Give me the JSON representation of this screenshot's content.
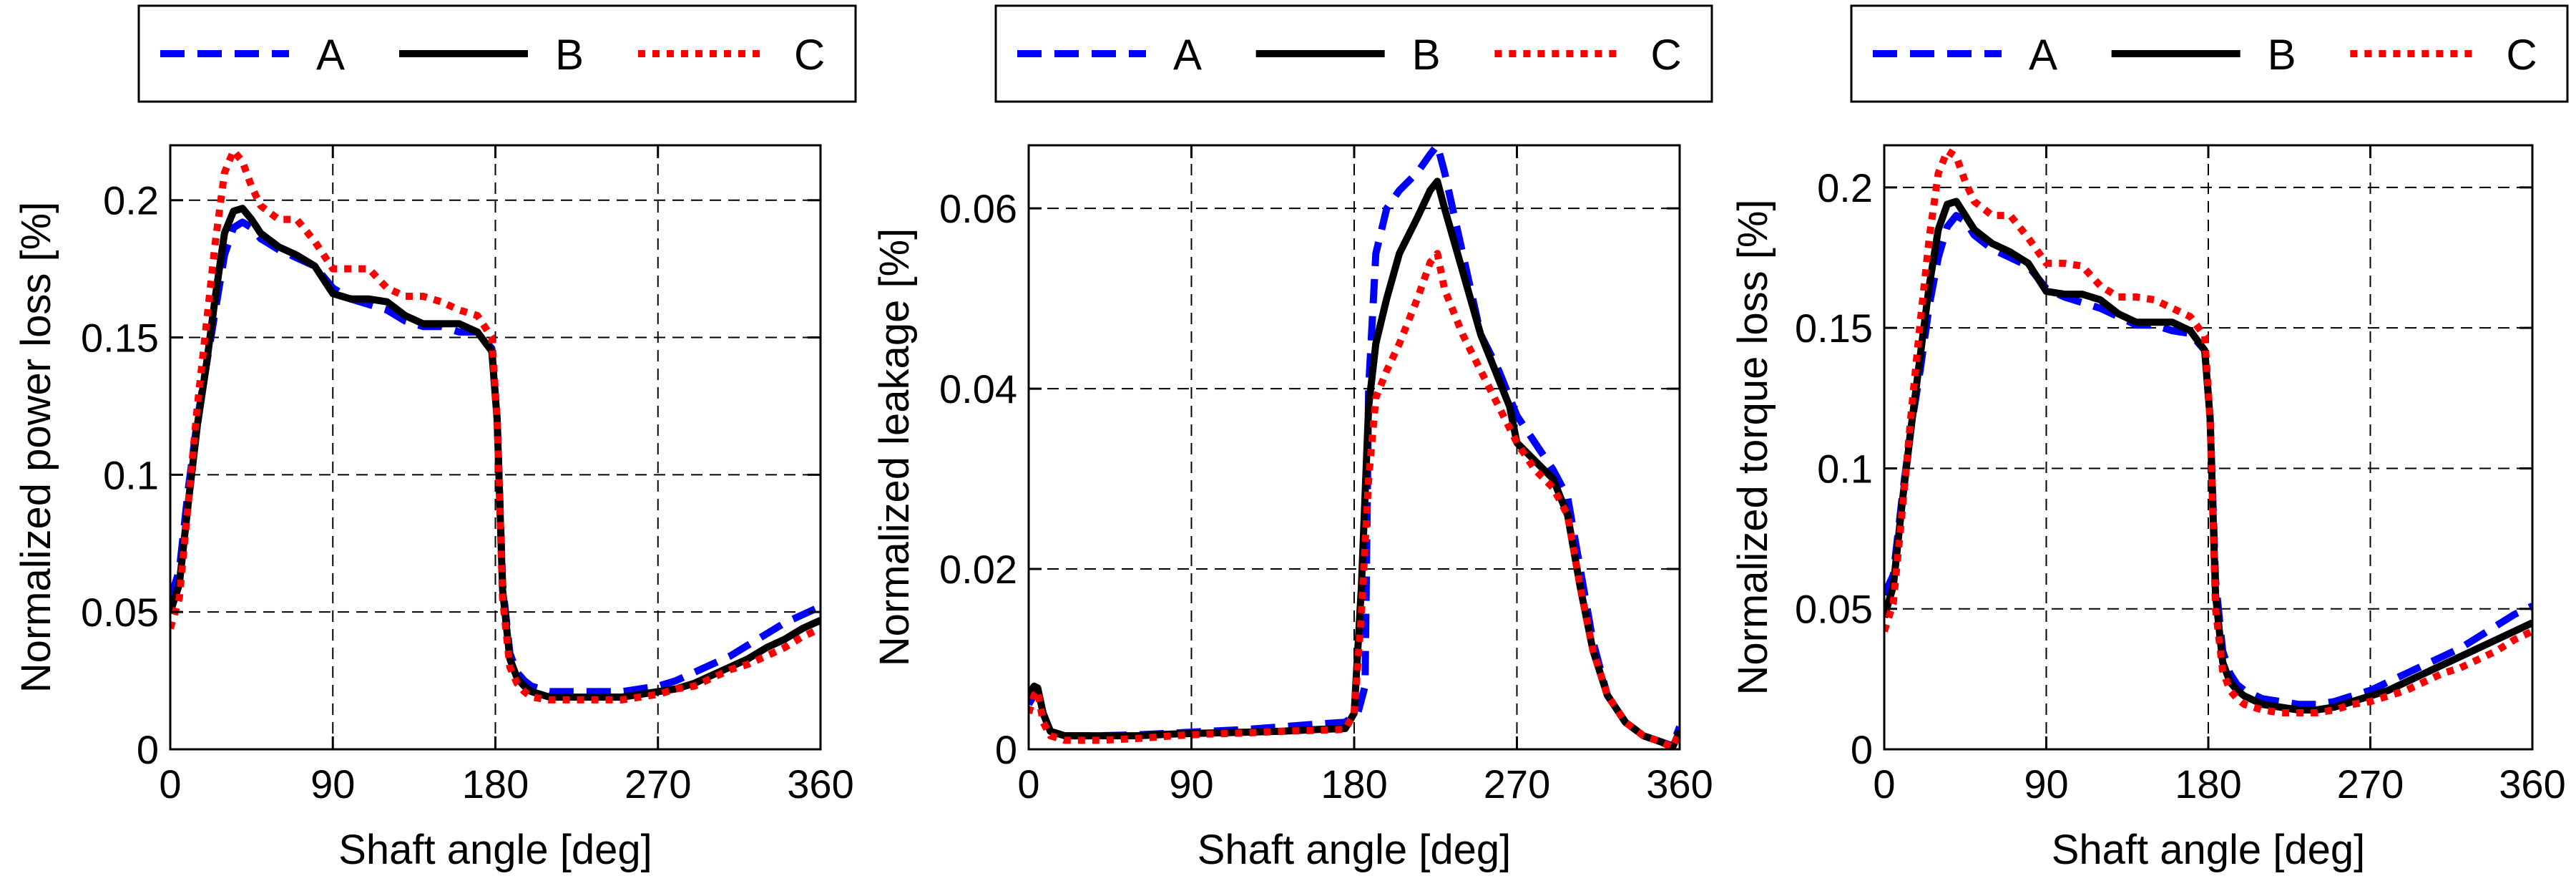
{
  "chart_data": [
    {
      "type": "line",
      "title": "",
      "xlabel": "Shaft angle [deg]",
      "ylabel": "Normalized power loss [%]",
      "xlim": [
        0,
        360
      ],
      "ylim": [
        0,
        0.22
      ],
      "xticks": [
        0,
        90,
        180,
        270,
        360
      ],
      "yticks": [
        0,
        0.05,
        0.1,
        0.15,
        0.2
      ],
      "ytick_labels": [
        "0",
        "0.05",
        "0.1",
        "0.15",
        "0.2"
      ],
      "grid": true,
      "legend": [
        "A",
        "B",
        "C"
      ],
      "series": [
        {
          "name": "A",
          "x": [
            0,
            5,
            10,
            15,
            20,
            25,
            30,
            35,
            40,
            45,
            50,
            60,
            70,
            80,
            90,
            100,
            110,
            120,
            130,
            140,
            150,
            160,
            170,
            178,
            181,
            184,
            188,
            192,
            196,
            200,
            210,
            220,
            230,
            240,
            250,
            260,
            270,
            280,
            290,
            300,
            310,
            320,
            330,
            340,
            350,
            360
          ],
          "y": [
            0.055,
            0.065,
            0.095,
            0.12,
            0.14,
            0.16,
            0.18,
            0.19,
            0.192,
            0.19,
            0.186,
            0.182,
            0.179,
            0.176,
            0.168,
            0.164,
            0.162,
            0.16,
            0.156,
            0.154,
            0.154,
            0.152,
            0.152,
            0.146,
            0.12,
            0.06,
            0.035,
            0.028,
            0.025,
            0.023,
            0.021,
            0.021,
            0.021,
            0.021,
            0.021,
            0.022,
            0.023,
            0.025,
            0.028,
            0.031,
            0.034,
            0.038,
            0.042,
            0.046,
            0.049,
            0.052
          ]
        },
        {
          "name": "B",
          "x": [
            0,
            5,
            10,
            15,
            20,
            25,
            30,
            35,
            40,
            45,
            50,
            60,
            70,
            80,
            90,
            100,
            110,
            120,
            130,
            140,
            150,
            160,
            170,
            178,
            181,
            184,
            188,
            192,
            196,
            200,
            210,
            220,
            230,
            240,
            250,
            260,
            270,
            280,
            290,
            300,
            310,
            320,
            330,
            340,
            350,
            360
          ],
          "y": [
            0.05,
            0.06,
            0.09,
            0.118,
            0.14,
            0.165,
            0.188,
            0.196,
            0.197,
            0.193,
            0.188,
            0.183,
            0.18,
            0.176,
            0.166,
            0.164,
            0.164,
            0.163,
            0.158,
            0.155,
            0.155,
            0.155,
            0.152,
            0.145,
            0.12,
            0.058,
            0.033,
            0.026,
            0.023,
            0.021,
            0.019,
            0.019,
            0.019,
            0.019,
            0.019,
            0.02,
            0.021,
            0.022,
            0.024,
            0.027,
            0.03,
            0.033,
            0.037,
            0.04,
            0.044,
            0.047
          ]
        },
        {
          "name": "C",
          "x": [
            0,
            5,
            10,
            15,
            20,
            25,
            30,
            35,
            40,
            45,
            50,
            60,
            70,
            80,
            90,
            100,
            110,
            120,
            130,
            140,
            150,
            160,
            170,
            178,
            181,
            184,
            188,
            192,
            196,
            200,
            210,
            220,
            230,
            240,
            250,
            260,
            270,
            280,
            290,
            300,
            310,
            320,
            330,
            340,
            350,
            360
          ],
          "y": [
            0.044,
            0.055,
            0.09,
            0.125,
            0.155,
            0.185,
            0.21,
            0.218,
            0.214,
            0.205,
            0.198,
            0.193,
            0.193,
            0.185,
            0.175,
            0.175,
            0.175,
            0.168,
            0.165,
            0.165,
            0.163,
            0.16,
            0.158,
            0.15,
            0.12,
            0.055,
            0.03,
            0.024,
            0.021,
            0.019,
            0.018,
            0.018,
            0.018,
            0.018,
            0.018,
            0.019,
            0.02,
            0.022,
            0.023,
            0.026,
            0.029,
            0.031,
            0.034,
            0.037,
            0.041,
            0.044
          ]
        }
      ]
    },
    {
      "type": "line",
      "title": "",
      "xlabel": "Shaft angle [deg]",
      "ylabel": "Normalized leakage [%]",
      "xlim": [
        0,
        360
      ],
      "ylim": [
        0,
        0.067
      ],
      "xticks": [
        0,
        90,
        180,
        270,
        360
      ],
      "yticks": [
        0,
        0.02,
        0.04,
        0.06
      ],
      "ytick_labels": [
        "0",
        "0.02",
        "0.04",
        "0.06"
      ],
      "grid": true,
      "legend": [
        "A",
        "B",
        "C"
      ],
      "series": [
        {
          "name": "A",
          "x": [
            0,
            3,
            5,
            8,
            12,
            20,
            40,
            60,
            80,
            100,
            120,
            140,
            160,
            175,
            182,
            186,
            188,
            192,
            198,
            205,
            215,
            222,
            226,
            230,
            240,
            250,
            260,
            270,
            280,
            290,
            298,
            305,
            312,
            320,
            330,
            340,
            350,
            356,
            360
          ],
          "y": [
            0.005,
            0.006,
            0.0065,
            0.004,
            0.002,
            0.0015,
            0.0015,
            0.0016,
            0.0018,
            0.002,
            0.0022,
            0.0025,
            0.0028,
            0.003,
            0.004,
            0.007,
            0.04,
            0.055,
            0.06,
            0.062,
            0.064,
            0.066,
            0.067,
            0.064,
            0.055,
            0.046,
            0.042,
            0.037,
            0.034,
            0.031,
            0.028,
            0.02,
            0.012,
            0.006,
            0.003,
            0.0015,
            0.0008,
            0.0004,
            0.0025
          ]
        },
        {
          "name": "B",
          "x": [
            0,
            3,
            5,
            8,
            12,
            20,
            40,
            60,
            80,
            100,
            120,
            140,
            160,
            175,
            180,
            184,
            188,
            192,
            198,
            205,
            215,
            222,
            226,
            230,
            240,
            250,
            258,
            262,
            266,
            270,
            280,
            290,
            298,
            305,
            312,
            320,
            330,
            340,
            350,
            356,
            360
          ],
          "y": [
            0.006,
            0.007,
            0.0068,
            0.004,
            0.002,
            0.0015,
            0.0015,
            0.0015,
            0.0017,
            0.0018,
            0.0019,
            0.002,
            0.0022,
            0.0023,
            0.004,
            0.018,
            0.038,
            0.045,
            0.05,
            0.055,
            0.059,
            0.062,
            0.063,
            0.06,
            0.053,
            0.046,
            0.042,
            0.04,
            0.038,
            0.034,
            0.032,
            0.03,
            0.026,
            0.018,
            0.011,
            0.006,
            0.003,
            0.0015,
            0.0008,
            0.0002,
            0.002
          ]
        },
        {
          "name": "C",
          "x": [
            0,
            3,
            5,
            8,
            12,
            20,
            40,
            60,
            80,
            100,
            120,
            140,
            160,
            175,
            180,
            184,
            188,
            192,
            198,
            205,
            215,
            222,
            226,
            230,
            240,
            250,
            260,
            270,
            280,
            290,
            298,
            305,
            312,
            320,
            330,
            340,
            350,
            356,
            360
          ],
          "y": [
            0.004,
            0.006,
            0.0065,
            0.003,
            0.0015,
            0.001,
            0.001,
            0.0012,
            0.0015,
            0.0017,
            0.0018,
            0.002,
            0.0021,
            0.0022,
            0.004,
            0.015,
            0.03,
            0.039,
            0.042,
            0.045,
            0.05,
            0.054,
            0.055,
            0.051,
            0.046,
            0.042,
            0.038,
            0.034,
            0.031,
            0.029,
            0.026,
            0.018,
            0.011,
            0.006,
            0.003,
            0.0015,
            0.0008,
            0.0002,
            0.002
          ]
        }
      ]
    },
    {
      "type": "line",
      "title": "",
      "xlabel": "Shaft angle [deg]",
      "ylabel": "Normalized torque loss [%]",
      "xlim": [
        0,
        360
      ],
      "ylim": [
        0,
        0.215
      ],
      "xticks": [
        0,
        90,
        180,
        270,
        360
      ],
      "yticks": [
        0,
        0.05,
        0.1,
        0.15,
        0.2
      ],
      "ytick_labels": [
        "0",
        "0.05",
        "0.1",
        "0.15",
        "0.2"
      ],
      "grid": true,
      "legend": [
        "A",
        "B",
        "C"
      ],
      "series": [
        {
          "name": "A",
          "x": [
            0,
            5,
            10,
            15,
            20,
            25,
            30,
            35,
            40,
            45,
            50,
            60,
            70,
            80,
            90,
            100,
            110,
            120,
            130,
            140,
            150,
            160,
            170,
            178,
            181,
            184,
            188,
            192,
            196,
            200,
            210,
            220,
            230,
            240,
            250,
            260,
            270,
            280,
            290,
            300,
            310,
            320,
            330,
            340,
            350,
            360
          ],
          "y": [
            0.055,
            0.062,
            0.09,
            0.115,
            0.135,
            0.158,
            0.175,
            0.186,
            0.19,
            0.188,
            0.183,
            0.178,
            0.175,
            0.172,
            0.164,
            0.161,
            0.159,
            0.157,
            0.154,
            0.151,
            0.151,
            0.149,
            0.148,
            0.142,
            0.118,
            0.06,
            0.035,
            0.027,
            0.023,
            0.021,
            0.018,
            0.017,
            0.016,
            0.016,
            0.017,
            0.019,
            0.021,
            0.024,
            0.027,
            0.03,
            0.033,
            0.036,
            0.04,
            0.044,
            0.048,
            0.051
          ]
        },
        {
          "name": "B",
          "x": [
            0,
            5,
            10,
            15,
            20,
            25,
            30,
            35,
            40,
            45,
            50,
            60,
            70,
            80,
            90,
            100,
            110,
            120,
            130,
            140,
            150,
            160,
            170,
            178,
            181,
            184,
            188,
            192,
            196,
            200,
            210,
            220,
            230,
            240,
            250,
            260,
            270,
            280,
            290,
            300,
            310,
            320,
            330,
            340,
            350,
            360
          ],
          "y": [
            0.047,
            0.058,
            0.088,
            0.115,
            0.14,
            0.165,
            0.185,
            0.194,
            0.195,
            0.19,
            0.185,
            0.18,
            0.177,
            0.173,
            0.163,
            0.162,
            0.162,
            0.16,
            0.155,
            0.152,
            0.152,
            0.152,
            0.149,
            0.142,
            0.118,
            0.055,
            0.031,
            0.024,
            0.021,
            0.019,
            0.016,
            0.015,
            0.014,
            0.014,
            0.015,
            0.017,
            0.019,
            0.021,
            0.024,
            0.027,
            0.03,
            0.033,
            0.036,
            0.039,
            0.042,
            0.045
          ]
        },
        {
          "name": "C",
          "x": [
            0,
            5,
            10,
            15,
            20,
            25,
            30,
            35,
            40,
            45,
            50,
            60,
            70,
            80,
            90,
            100,
            110,
            120,
            130,
            140,
            150,
            160,
            170,
            178,
            181,
            184,
            188,
            192,
            196,
            200,
            210,
            220,
            230,
            240,
            250,
            260,
            270,
            280,
            290,
            300,
            310,
            320,
            330,
            340,
            350,
            360
          ],
          "y": [
            0.042,
            0.052,
            0.085,
            0.12,
            0.152,
            0.182,
            0.205,
            0.213,
            0.211,
            0.202,
            0.195,
            0.19,
            0.19,
            0.182,
            0.173,
            0.173,
            0.172,
            0.165,
            0.161,
            0.161,
            0.16,
            0.157,
            0.154,
            0.147,
            0.118,
            0.05,
            0.028,
            0.021,
            0.018,
            0.016,
            0.014,
            0.013,
            0.013,
            0.013,
            0.014,
            0.016,
            0.017,
            0.019,
            0.021,
            0.024,
            0.027,
            0.029,
            0.032,
            0.035,
            0.039,
            0.042
          ]
        }
      ]
    }
  ],
  "style": {
    "colors": {
      "A": "#0000ff",
      "B": "#000000",
      "C": "#ff0000"
    },
    "dashes": {
      "A": "dashed",
      "B": "solid",
      "C": "dotted"
    }
  }
}
